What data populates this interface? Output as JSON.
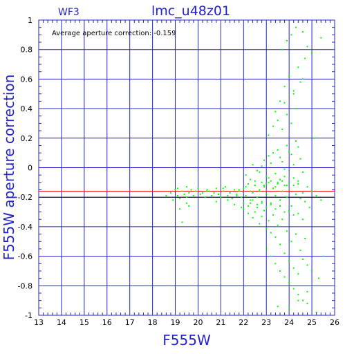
{
  "chart_data": {
    "type": "scatter",
    "title": "lmc_u48z01",
    "panel_label": "WF3",
    "xlabel": "F555W",
    "ylabel": "F555W aperture correction",
    "annotation": "Average aperture correction: -0.159",
    "xlim": [
      13,
      26
    ],
    "ylim": [
      -1,
      1
    ],
    "xticks": [
      "13",
      "14",
      "15",
      "16",
      "17",
      "18",
      "19",
      "20",
      "21",
      "22",
      "23",
      "24",
      "25",
      "26"
    ],
    "yticks": [
      "-1",
      "-0.8",
      "-0.6",
      "-0.4",
      "-0.2",
      "0",
      "0.2",
      "0.4",
      "0.6",
      "0.8",
      "1"
    ],
    "grid": true,
    "reference_lines": [
      {
        "name": "average",
        "y": -0.159,
        "color": "#ff0000"
      },
      {
        "name": "reference",
        "y": -0.2,
        "color": "#000000"
      }
    ],
    "point_color": "#00ff00",
    "axis_color": "#2222cc",
    "series": [
      {
        "x": [
          18.6,
          18.8,
          18.9,
          19.0,
          19.1,
          19.1,
          19.2,
          19.3,
          19.4,
          19.5,
          19.5,
          19.6,
          19.7,
          19.8,
          19.9,
          20.0,
          20.1,
          20.2,
          20.3,
          20.4,
          20.5,
          20.6,
          20.7,
          20.8,
          20.9,
          21.0,
          21.1,
          21.2,
          21.3,
          21.4,
          21.5,
          21.6,
          21.7,
          21.8,
          21.9,
          22.0,
          22.1,
          22.2,
          22.3,
          22.4,
          22.5,
          22.6,
          22.7,
          22.8,
          22.9,
          23.0,
          23.1,
          23.2,
          23.3,
          23.4,
          23.5,
          23.6,
          23.7,
          23.8,
          23.9,
          24.0,
          24.1,
          24.2,
          24.3,
          24.4,
          24.5,
          24.6,
          24.7,
          24.8,
          24.9,
          25.0,
          25.2,
          25.4,
          19.3,
          19.5,
          19.6,
          19.2,
          20.8,
          21.3,
          21.6,
          21.9,
          22.0,
          22.2,
          22.3,
          22.4,
          22.5,
          22.6,
          22.7,
          22.8,
          22.9,
          23.0,
          23.1,
          23.2,
          23.3,
          23.4,
          23.5,
          23.6,
          23.7,
          23.8,
          23.9,
          24.0,
          24.1,
          24.2,
          24.3,
          24.4,
          24.5,
          24.6,
          24.7,
          24.8,
          25.0,
          25.3,
          25.5,
          22.1,
          22.4,
          22.7,
          22.9,
          23.1,
          23.3,
          23.5,
          23.7,
          23.9,
          24.1,
          24.3,
          24.5,
          22.3,
          22.6,
          22.8,
          23.0,
          23.2,
          23.4,
          23.6,
          23.8,
          24.0,
          24.2,
          24.4,
          24.6,
          22.5,
          22.8,
          23.0,
          23.2,
          23.4,
          23.6,
          23.8,
          24.0,
          24.2,
          24.4,
          22.0,
          22.2,
          22.4,
          22.6,
          22.8,
          23.0,
          23.2,
          23.4,
          23.6,
          23.8,
          24.0,
          24.2,
          24.4,
          24.6,
          23.1,
          23.3,
          23.5,
          23.7,
          23.9,
          24.1,
          24.3,
          23.0,
          23.2,
          23.4,
          23.6,
          23.8,
          24.0,
          24.2,
          24.4,
          24.6,
          24.8,
          23.6,
          23.8,
          24.0,
          24.2,
          24.4,
          24.5,
          24.7,
          25.1,
          23.7,
          23.9,
          24.1,
          24.3,
          24.6,
          24.8,
          25.0,
          25.4,
          23.4,
          23.8,
          24.2,
          24.6,
          23.5,
          24.0,
          24.4,
          24.8,
          25.2,
          20.4,
          20.9,
          21.1,
          21.4,
          21.7,
          21.8,
          22.1,
          22.3,
          22.5,
          22.7,
          22.9,
          23.1,
          23.3,
          23.5,
          23.7,
          23.9
        ],
        "y": [
          -0.19,
          -0.17,
          -0.22,
          -0.15,
          -0.19,
          -0.14,
          -0.21,
          -0.16,
          -0.18,
          -0.13,
          -0.2,
          -0.17,
          -0.15,
          -0.19,
          -0.16,
          -0.14,
          -0.18,
          -0.17,
          -0.2,
          -0.15,
          -0.16,
          -0.19,
          -0.17,
          -0.14,
          -0.18,
          -0.2,
          -0.16,
          -0.13,
          -0.19,
          -0.17,
          -0.21,
          -0.15,
          -0.18,
          -0.16,
          -0.2,
          -0.14,
          -0.19,
          -0.11,
          -0.22,
          -0.17,
          -0.09,
          -0.2,
          -0.16,
          -0.24,
          -0.12,
          -0.18,
          -0.07,
          -0.25,
          -0.14,
          -0.19,
          -0.1,
          -0.22,
          -0.16,
          -0.06,
          -0.2,
          -0.15,
          -0.26,
          -0.12,
          -0.18,
          -0.09,
          -0.21,
          -0.17,
          -0.23,
          -0.13,
          -0.27,
          -0.16,
          -0.19,
          -0.22,
          -0.37,
          -0.24,
          -0.26,
          -0.28,
          -0.23,
          -0.22,
          -0.25,
          -0.27,
          -0.28,
          -0.31,
          -0.24,
          -0.34,
          -0.3,
          -0.27,
          -0.38,
          -0.33,
          -0.29,
          -0.41,
          -0.36,
          -0.44,
          -0.32,
          -0.47,
          -0.39,
          -0.52,
          -0.35,
          -0.58,
          -0.43,
          -0.63,
          -0.5,
          -0.68,
          -0.45,
          -0.72,
          -0.56,
          -0.62,
          -0.48,
          -0.66,
          -0.7,
          -0.75,
          -0.6,
          -0.05,
          0.02,
          -0.03,
          0.05,
          0.08,
          0.1,
          0.12,
          0.04,
          0.15,
          0.09,
          0.18,
          0.06,
          -0.08,
          -0.02,
          0.01,
          -0.06,
          0.03,
          -0.04,
          0.07,
          -0.01,
          0.11,
          0.02,
          0.14,
          -0.03,
          -0.12,
          -0.1,
          -0.11,
          -0.09,
          -0.13,
          -0.08,
          -0.12,
          -0.1,
          -0.07,
          -0.11,
          -0.24,
          -0.26,
          -0.22,
          -0.25,
          -0.23,
          -0.27,
          -0.24,
          -0.28,
          -0.26,
          -0.3,
          -0.29,
          -0.32,
          -0.31,
          -0.35,
          0.22,
          0.28,
          0.32,
          0.26,
          0.36,
          0.3,
          0.4,
          -0.55,
          -0.6,
          -0.65,
          -0.7,
          -0.74,
          -0.78,
          -0.82,
          -0.86,
          -0.9,
          -0.84,
          0.45,
          0.55,
          0.62,
          0.5,
          0.68,
          0.58,
          0.74,
          0.2,
          0.8,
          0.86,
          0.9,
          0.95,
          0.92,
          0.82,
          0.78,
          0.88,
          0.38,
          0.44,
          0.52,
          0.6,
          -0.94,
          -0.96,
          -0.9,
          -0.92,
          -0.98,
          -0.16,
          -0.18,
          -0.14,
          -0.17,
          -0.19,
          -0.15,
          -0.13,
          -0.16,
          -0.12,
          -0.15,
          -0.13,
          -0.1,
          -0.14,
          -0.11,
          -0.09,
          -0.12
        ]
      }
    ]
  }
}
